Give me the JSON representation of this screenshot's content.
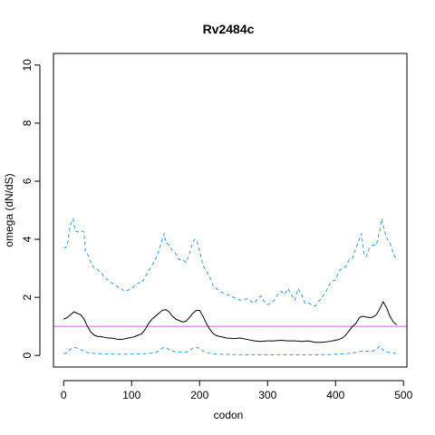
{
  "chart_data": {
    "type": "line",
    "title": "Rv2484c",
    "xlabel": "codon",
    "ylabel": "omega (dN/dS)",
    "xlim": [
      -15,
      505
    ],
    "ylim": [
      -0.4,
      10.4
    ],
    "x_ticks": [
      0,
      100,
      200,
      300,
      400,
      500
    ],
    "y_ticks": [
      0,
      2,
      4,
      6,
      8,
      10
    ],
    "reference_line": {
      "y": 1,
      "color": "#cc66cc"
    },
    "series": [
      {
        "style": "dashed",
        "color": "#3399dd",
        "x": [
          0,
          5,
          10,
          12,
          14,
          17,
          20,
          25,
          30,
          32,
          35,
          40,
          45,
          50,
          55,
          60,
          65,
          70,
          75,
          80,
          85,
          90,
          95,
          100,
          105,
          110,
          115,
          120,
          125,
          130,
          135,
          140,
          145,
          148,
          150,
          155,
          160,
          165,
          170,
          175,
          180,
          185,
          190,
          193,
          196,
          200,
          205,
          210,
          215,
          220,
          225,
          230,
          240,
          250,
          260,
          270,
          280,
          290,
          295,
          300,
          305,
          310,
          315,
          320,
          325,
          330,
          335,
          340,
          345,
          350,
          355,
          360,
          365,
          370,
          375,
          380,
          385,
          390,
          395,
          400,
          405,
          410,
          415,
          420,
          425,
          430,
          435,
          438,
          442,
          445,
          450,
          455,
          460,
          465,
          468,
          472,
          476,
          480,
          485,
          490
        ],
        "y": [
          3.7,
          3.75,
          4.5,
          4.6,
          4.7,
          4.3,
          4.25,
          4.3,
          4.25,
          3.6,
          3.5,
          3.2,
          3.0,
          2.95,
          2.85,
          2.7,
          2.6,
          2.5,
          2.45,
          2.35,
          2.3,
          2.2,
          2.25,
          2.3,
          2.4,
          2.5,
          2.5,
          2.7,
          2.9,
          3.1,
          3.3,
          3.6,
          4.0,
          4.2,
          3.9,
          3.8,
          3.6,
          3.5,
          3.3,
          3.3,
          3.2,
          3.5,
          3.9,
          4.0,
          3.95,
          3.6,
          3.1,
          2.9,
          2.7,
          2.4,
          2.3,
          2.2,
          2.1,
          2.0,
          1.9,
          1.95,
          1.8,
          2.05,
          1.85,
          1.75,
          1.8,
          1.9,
          2.1,
          2.2,
          2.1,
          2.3,
          2.1,
          1.9,
          2.3,
          2.1,
          1.8,
          1.8,
          1.75,
          1.7,
          1.85,
          2.0,
          2.15,
          2.4,
          2.55,
          2.6,
          2.9,
          3.0,
          3.05,
          3.3,
          3.35,
          3.7,
          4.0,
          4.2,
          3.5,
          3.4,
          3.7,
          3.8,
          3.8,
          4.3,
          4.7,
          4.3,
          4.0,
          3.9,
          3.5,
          3.3
        ]
      },
      {
        "style": "solid",
        "color": "#000000",
        "x": [
          0,
          5,
          10,
          15,
          20,
          25,
          30,
          35,
          40,
          45,
          50,
          55,
          60,
          65,
          70,
          75,
          80,
          85,
          90,
          95,
          100,
          105,
          110,
          115,
          120,
          125,
          130,
          135,
          140,
          145,
          150,
          155,
          160,
          165,
          170,
          175,
          180,
          185,
          190,
          195,
          200,
          205,
          210,
          215,
          220,
          225,
          230,
          240,
          250,
          260,
          270,
          280,
          290,
          300,
          310,
          320,
          330,
          340,
          350,
          360,
          370,
          380,
          390,
          400,
          405,
          410,
          415,
          420,
          425,
          430,
          435,
          440,
          445,
          450,
          455,
          460,
          465,
          470,
          475,
          480,
          485,
          490
        ],
        "y": [
          1.25,
          1.3,
          1.4,
          1.5,
          1.45,
          1.4,
          1.25,
          1.0,
          0.8,
          0.7,
          0.65,
          0.65,
          0.62,
          0.6,
          0.6,
          0.58,
          0.55,
          0.55,
          0.57,
          0.6,
          0.62,
          0.65,
          0.7,
          0.75,
          0.9,
          1.1,
          1.25,
          1.35,
          1.45,
          1.55,
          1.58,
          1.5,
          1.35,
          1.25,
          1.2,
          1.15,
          1.18,
          1.3,
          1.45,
          1.55,
          1.55,
          1.35,
          1.1,
          0.9,
          0.75,
          0.68,
          0.65,
          0.6,
          0.58,
          0.6,
          0.55,
          0.5,
          0.48,
          0.5,
          0.5,
          0.52,
          0.5,
          0.5,
          0.48,
          0.5,
          0.45,
          0.45,
          0.48,
          0.52,
          0.55,
          0.6,
          0.7,
          0.85,
          1.0,
          1.1,
          1.3,
          1.35,
          1.32,
          1.3,
          1.32,
          1.4,
          1.6,
          1.85,
          1.65,
          1.35,
          1.15,
          1.05
        ]
      },
      {
        "style": "dashed",
        "color": "#3399dd",
        "x": [
          0,
          5,
          10,
          15,
          20,
          25,
          30,
          35,
          40,
          50,
          60,
          70,
          80,
          90,
          100,
          110,
          120,
          130,
          135,
          140,
          145,
          150,
          155,
          160,
          165,
          170,
          175,
          180,
          185,
          190,
          195,
          200,
          205,
          210,
          215,
          220,
          230,
          250,
          270,
          290,
          310,
          330,
          350,
          370,
          390,
          400,
          410,
          420,
          430,
          435,
          440,
          445,
          450,
          455,
          460,
          465,
          470,
          475,
          480,
          485,
          490
        ],
        "y": [
          0.05,
          0.1,
          0.22,
          0.28,
          0.25,
          0.2,
          0.15,
          0.1,
          0.08,
          0.06,
          0.05,
          0.05,
          0.04,
          0.04,
          0.05,
          0.05,
          0.06,
          0.08,
          0.1,
          0.15,
          0.25,
          0.28,
          0.2,
          0.15,
          0.12,
          0.12,
          0.12,
          0.12,
          0.15,
          0.25,
          0.28,
          0.25,
          0.15,
          0.1,
          0.07,
          0.05,
          0.04,
          0.03,
          0.02,
          0.02,
          0.02,
          0.02,
          0.02,
          0.02,
          0.03,
          0.04,
          0.05,
          0.07,
          0.1,
          0.13,
          0.15,
          0.15,
          0.13,
          0.15,
          0.2,
          0.32,
          0.18,
          0.12,
          0.1,
          0.08,
          0.06
        ]
      }
    ]
  }
}
